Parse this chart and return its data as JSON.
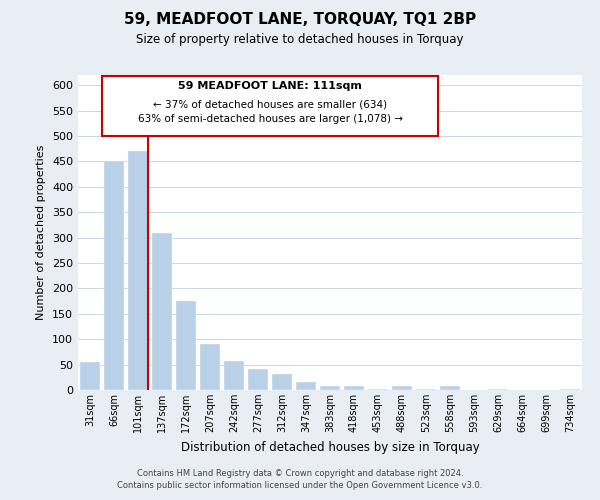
{
  "title": "59, MEADFOOT LANE, TORQUAY, TQ1 2BP",
  "subtitle": "Size of property relative to detached houses in Torquay",
  "xlabel": "Distribution of detached houses by size in Torquay",
  "ylabel": "Number of detached properties",
  "categories": [
    "31sqm",
    "66sqm",
    "101sqm",
    "137sqm",
    "172sqm",
    "207sqm",
    "242sqm",
    "277sqm",
    "312sqm",
    "347sqm",
    "383sqm",
    "418sqm",
    "453sqm",
    "488sqm",
    "523sqm",
    "558sqm",
    "593sqm",
    "629sqm",
    "664sqm",
    "699sqm",
    "734sqm"
  ],
  "values": [
    55,
    450,
    470,
    310,
    175,
    90,
    58,
    42,
    32,
    15,
    8,
    7,
    2,
    8,
    2,
    8,
    0,
    2,
    0,
    0,
    2
  ],
  "bar_color": "#b8d0e8",
  "marker_index": 2,
  "marker_color": "#cc0000",
  "ylim": [
    0,
    620
  ],
  "yticks": [
    0,
    50,
    100,
    150,
    200,
    250,
    300,
    350,
    400,
    450,
    500,
    550,
    600
  ],
  "annotation_title": "59 MEADFOOT LANE: 111sqm",
  "annotation_line1": "← 37% of detached houses are smaller (634)",
  "annotation_line2": "63% of semi-detached houses are larger (1,078) →",
  "footer_line1": "Contains HM Land Registry data © Crown copyright and database right 2024.",
  "footer_line2": "Contains public sector information licensed under the Open Government Licence v3.0.",
  "background_color": "#e8eef4",
  "plot_background": "#ffffff",
  "grid_color": "#c8d8e8"
}
